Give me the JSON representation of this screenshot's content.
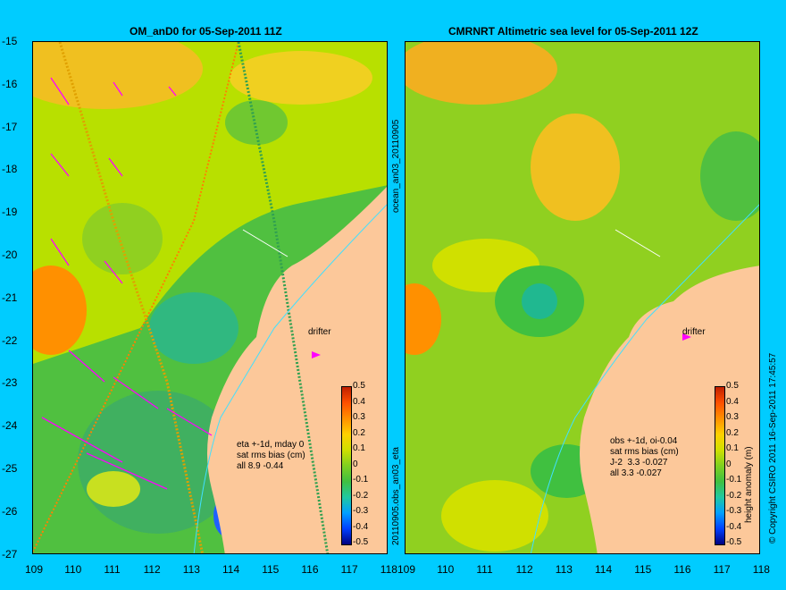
{
  "left_panel": {
    "title": "OM_anD0 for 05-Sep-2011 11Z",
    "info": [
      "eta +-1d, mday 0",
      "sat rms bias (cm)",
      "all 8.9 -0.44"
    ],
    "drifter_label": "drifter"
  },
  "right_panel": {
    "title": "CMRNRT Altimetric sea level  for 05-Sep-2011 12Z",
    "info": [
      "obs +-1d, oi-0.04",
      "sat rms bias (cm)",
      "J-2  3.3 -0.027",
      "all 3.3 -0.027"
    ],
    "drifter_label": "drifter"
  },
  "y_ticks": [
    "-15",
    "-16",
    "-17",
    "-18",
    "-19",
    "-20",
    "-21",
    "-22",
    "-23",
    "-24",
    "-25",
    "-26",
    "-27"
  ],
  "x_ticks": [
    "109",
    "110",
    "111",
    "112",
    "113",
    "114",
    "115",
    "116",
    "117",
    "118"
  ],
  "colorbar": {
    "ticks": [
      "0.5",
      "0.4",
      "0.3",
      "0.2",
      "0.1",
      "0",
      "-0.1",
      "-0.2",
      "-0.3",
      "-0.4",
      "-0.5"
    ],
    "label": "height anomaly (m)",
    "colors": [
      "#000080",
      "#0040ff",
      "#00a0ff",
      "#20c8a0",
      "#40c040",
      "#80d020",
      "#d0e000",
      "#ffd000",
      "#ff9000",
      "#ff5000",
      "#c02000"
    ]
  },
  "side_text_left": "ocean_an03_20110905",
  "side_text_left2": "20110905.obs_an03_eta",
  "copyright": "© Copyright CSIRO 2011   16-Sep-2011 17:45:57"
}
